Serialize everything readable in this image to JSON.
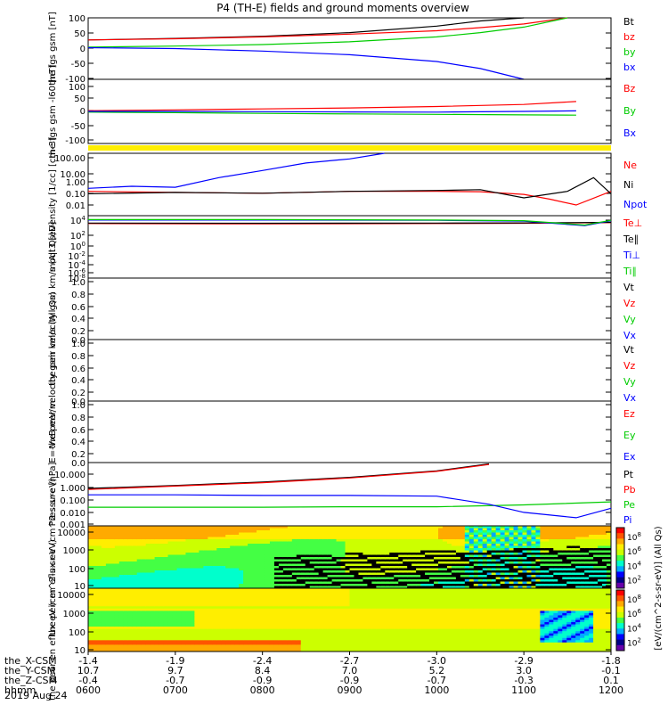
{
  "title": "P4 (TH-E) fields and ground moments overview",
  "date": "2019 Aug 24",
  "footer": {
    "row_labels": [
      "the_X-CSM",
      "the_Y-CSM",
      "the_Z-CSM",
      "hhmm"
    ],
    "x_csm": [
      "-1.4",
      "-1.9",
      "-2.4",
      "-2.7",
      "-3.0",
      "-2.9",
      "-1.8"
    ],
    "y_csm": [
      "10.7",
      "9.7",
      "8.4",
      "7.0",
      "5.2",
      "3.0",
      "-0.1"
    ],
    "z_csm": [
      "-0.4",
      "-0.7",
      "-0.9",
      "-0.9",
      "-0.7",
      "-0.3",
      "0.1"
    ],
    "hhmm": [
      "0600",
      "0700",
      "0800",
      "0900",
      "1000",
      "1100",
      "1200"
    ]
  },
  "colors": {
    "black": "#000000",
    "red": "#ff0000",
    "green": "#00cc00",
    "blue": "#0000ff",
    "yellow": "#ffee00"
  },
  "colorbar": {
    "label": "[eV/(cm^2-s-sr-eV)] (All Qs)",
    "label_lower": "[eV/(cm^2-s-sr-eV)] (All Qs)",
    "ticks_upper": [
      "10^8",
      "10^6",
      "10^4",
      "10^2"
    ],
    "ticks_lower": [
      "10^8",
      "10^6",
      "10^4",
      "10^2"
    ]
  },
  "chart_data": [
    {
      "type": "line",
      "ylabel": "the fgs gsm [nT]",
      "ticks": [
        "100",
        "50",
        "0",
        "-50",
        "-100"
      ],
      "ylim": [
        -100,
        100
      ],
      "legend": [
        "Bt",
        "bz",
        "by",
        "bx"
      ],
      "series": [
        {
          "name": "Bt",
          "color": "#000000",
          "x": [
            6.0,
            7.0,
            8.0,
            9.0,
            10.0,
            10.5,
            11.0
          ],
          "y": [
            28,
            33,
            40,
            52,
            73,
            90,
            100
          ]
        },
        {
          "name": "bz",
          "color": "#ff0000",
          "x": [
            6.0,
            7.0,
            8.0,
            9.0,
            10.0,
            10.5,
            11.0,
            11.5
          ],
          "y": [
            28,
            32,
            38,
            47,
            58,
            68,
            80,
            100
          ]
        },
        {
          "name": "by",
          "color": "#00cc00",
          "x": [
            6.0,
            7.0,
            8.0,
            9.0,
            10.0,
            10.5,
            11.0,
            11.5
          ],
          "y": [
            5,
            8,
            13,
            22,
            38,
            52,
            70,
            100
          ]
        },
        {
          "name": "bx",
          "color": "#0000ff",
          "x": [
            6.0,
            7.0,
            8.0,
            9.0,
            10.0,
            10.5,
            11.0
          ],
          "y": [
            3,
            0,
            -8,
            -20,
            -42,
            -65,
            -100
          ]
        }
      ]
    },
    {
      "type": "line",
      "ylabel": "the fgs gsm -l60 [nT]",
      "ticks": [
        "100",
        "50",
        "0",
        "-50",
        "-100"
      ],
      "ylim": [
        -130,
        130
      ],
      "legend": [
        "Bz",
        "By",
        "Bx"
      ],
      "series": [
        {
          "name": "Bz",
          "color": "#ff0000",
          "x": [
            6.0,
            7.0,
            8.0,
            9.0,
            10.0,
            11.0,
            11.6
          ],
          "y": [
            3,
            6,
            10,
            14,
            20,
            28,
            40
          ]
        },
        {
          "name": "By",
          "color": "#00cc00",
          "x": [
            6.0,
            7.0,
            8.0,
            9.0,
            10.0,
            11.0,
            11.6
          ],
          "y": [
            -3,
            -5,
            -8,
            -10,
            -12,
            -14,
            -15
          ]
        },
        {
          "name": "Bx",
          "color": "#0000ff",
          "x": [
            6.0,
            7.0,
            8.0,
            9.0,
            10.0,
            11.0,
            11.6
          ],
          "y": [
            0,
            0,
            -1,
            -2,
            -3,
            0,
            2
          ]
        }
      ]
    },
    {
      "type": "line",
      "log": true,
      "ylabel": "Density [1/cc] [cm-3]",
      "ticks": [
        "100.00",
        "10.00",
        "1.00",
        "0.10",
        "0.01"
      ],
      "ylim": [
        0.005,
        180
      ],
      "legend": [
        "Ne",
        "Ni",
        "Npot"
      ],
      "series": [
        {
          "name": "Ne",
          "color": "#ff0000",
          "x": [
            6.0,
            7.0,
            8.0,
            9.0,
            10.0,
            10.5,
            11.0,
            11.3,
            11.6,
            12.0
          ],
          "y": [
            0.3,
            0.25,
            0.22,
            0.3,
            0.3,
            0.28,
            0.18,
            0.08,
            0.03,
            0.3
          ]
        },
        {
          "name": "Ni",
          "color": "#000000",
          "x": [
            6.0,
            7.0,
            8.0,
            9.0,
            10.0,
            10.5,
            11.0,
            11.5,
            11.8,
            12.0
          ],
          "y": [
            0.2,
            0.25,
            0.22,
            0.3,
            0.35,
            0.4,
            0.1,
            0.3,
            3.0,
            0.2
          ]
        },
        {
          "name": "Npot",
          "color": "#0000ff",
          "x": [
            6.0,
            6.5,
            7.0,
            7.5,
            8.0,
            8.5,
            9.0,
            9.4
          ],
          "y": [
            0.5,
            0.7,
            0.6,
            3.0,
            10.0,
            35.0,
            70.0,
            180.0
          ]
        }
      ]
    },
    {
      "type": "line",
      "log": true,
      "ylabel": "moqt3 [eV]",
      "ticks": [
        "10^4",
        "10^2",
        "10^0",
        "10^-2",
        "10^-4",
        "10^-6",
        "10^-8"
      ],
      "ylim": [
        1e-08,
        30000.0
      ],
      "legend": [
        "Te⊥",
        "Te∥",
        "Ti⊥",
        "Ti∥"
      ],
      "series": [
        {
          "name": "Te⊥",
          "color": "#ff0000",
          "x": [
            6.0,
            8.0,
            10.0,
            11.0,
            12.0
          ],
          "y": [
            800,
            700,
            800,
            900,
            1200
          ]
        },
        {
          "name": "Te∥",
          "color": "#000000",
          "x": [
            6.0,
            8.0,
            10.0,
            11.0,
            12.0
          ],
          "y": [
            1000,
            900,
            1000,
            1100,
            1400
          ]
        },
        {
          "name": "Ti⊥",
          "color": "#0000ff",
          "x": [
            6.0,
            8.0,
            10.0,
            11.0,
            11.7,
            12.0
          ],
          "y": [
            4000,
            4000,
            3500,
            2500,
            300,
            3000
          ]
        },
        {
          "name": "Ti∥",
          "color": "#00cc00",
          "x": [
            6.0,
            8.0,
            10.0,
            11.0,
            11.7,
            12.0
          ],
          "y": [
            5000,
            5000,
            4000,
            3000,
            400,
            3500
          ]
        }
      ]
    },
    {
      "type": "line",
      "ylabel": "the peir velocity gsm km/s (All Qs)",
      "ticks": [
        "1.0",
        "0.8",
        "0.6",
        "0.4",
        "0.2",
        "0.0"
      ],
      "ylim": [
        0,
        1
      ],
      "legend": [
        "Vt",
        "Vz",
        "Vy",
        "Vx"
      ],
      "series": []
    },
    {
      "type": "line",
      "ylabel": "the peer velocity gsm km/s (All Qs)",
      "ticks": [
        "1.0",
        "0.8",
        "0.6",
        "0.4",
        "0.2",
        "0.0"
      ],
      "ylim": [
        0,
        1
      ],
      "legend": [
        "Vt",
        "Vz",
        "Vy",
        "Vx"
      ],
      "series": []
    },
    {
      "type": "line",
      "ylabel": "E=-VxB mV/m",
      "ticks": [
        "1.0",
        "0.8",
        "0.6",
        "0.4",
        "0.2",
        "0.0"
      ],
      "ylim": [
        0,
        1
      ],
      "legend": [
        "Ez",
        "Ey",
        "Ex"
      ],
      "series": []
    },
    {
      "type": "line",
      "log": true,
      "ylabel": "Pressure [nPa]",
      "ticks": [
        "10.000",
        "1.000",
        "0.100",
        "0.010",
        "0.001"
      ],
      "ylim": [
        0.0005,
        25
      ],
      "legend": [
        "Pt",
        "Pb",
        "Pe",
        "Pi"
      ],
      "series": [
        {
          "name": "Pt",
          "color": "#000000",
          "x": [
            6.0,
            7.0,
            8.0,
            9.0,
            10.0,
            10.6
          ],
          "y": [
            0.3,
            0.5,
            0.9,
            2.0,
            6.0,
            20.0
          ]
        },
        {
          "name": "Pb",
          "color": "#ff0000",
          "x": [
            6.0,
            7.0,
            8.0,
            9.0,
            10.0,
            10.6
          ],
          "y": [
            0.25,
            0.45,
            0.8,
            1.8,
            5.5,
            18.0
          ]
        },
        {
          "name": "Pe",
          "color": "#00cc00",
          "x": [
            6.0,
            7.0,
            8.0,
            9.0,
            10.0,
            11.0,
            12.0
          ],
          "y": [
            0.012,
            0.012,
            0.012,
            0.013,
            0.013,
            0.018,
            0.03
          ]
        },
        {
          "name": "Pi",
          "color": "#0000ff",
          "x": [
            6.0,
            7.0,
            8.0,
            9.0,
            10.0,
            10.6,
            11.0,
            11.6,
            12.0
          ],
          "y": [
            0.1,
            0.1,
            0.09,
            0.09,
            0.08,
            0.02,
            0.005,
            0.002,
            0.01
          ]
        }
      ]
    },
    {
      "type": "heatmap",
      "ylabel": "the peir en eflux eV (cm^2-s-sr-eV)",
      "ticks": [
        "10000",
        "1000",
        "100",
        "10"
      ],
      "ylim": [
        5,
        30000
      ]
    },
    {
      "type": "heatmap",
      "ylabel": "the peer en eflux eV (cm^2-s-sr-eV)",
      "ticks": [
        "10000",
        "1000",
        "100",
        "10"
      ],
      "ylim": [
        5,
        30000
      ]
    }
  ]
}
